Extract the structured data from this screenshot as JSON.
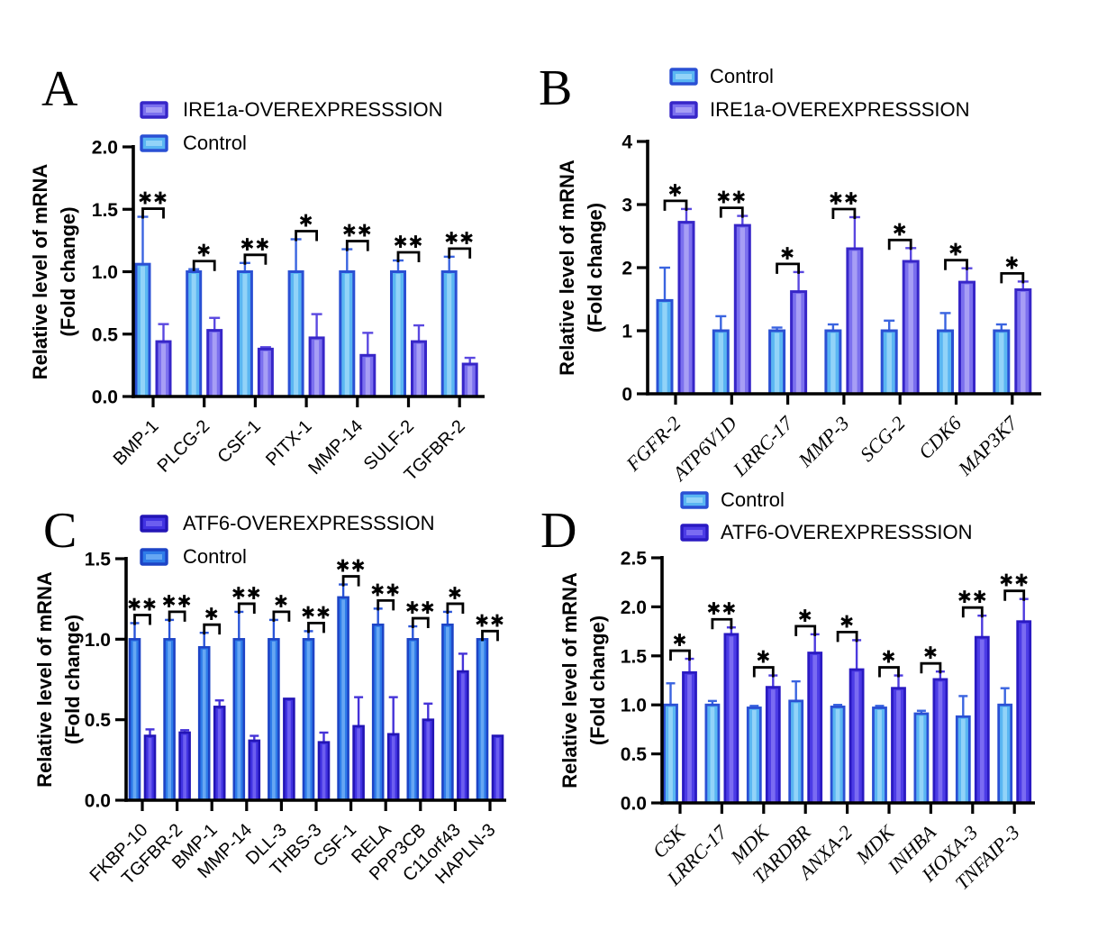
{
  "figure": {
    "background": "#ffffff",
    "axis_color": "#000000",
    "significance_marker_color": "#000000"
  },
  "chart_data": [
    {
      "panel": "A",
      "type": "bar",
      "title": "",
      "xlabel": "",
      "ylabel_lines": [
        "Relative level of  mRNA",
        "(Fold change)"
      ],
      "ylim": [
        0,
        2.0
      ],
      "grid": false,
      "legend_position": "top-left",
      "yticks": [
        {
          "v": 0.0,
          "label": "0.0"
        },
        {
          "v": 0.5,
          "label": "0.5"
        },
        {
          "v": 1.0,
          "label": "1.0"
        },
        {
          "v": 1.5,
          "label": "1.5"
        },
        {
          "v": 2.0,
          "label": "2.0"
        }
      ],
      "categories": [
        "BMP-1",
        "PLCG-2",
        "CSF-1",
        "PITX-1",
        "MMP-14",
        "SULF-2",
        "TGFBR-2"
      ],
      "category_label_style": "sans",
      "legend": [
        {
          "series": "overexpression",
          "label": "IRE1a-OVEREXPRESSSION"
        },
        {
          "series": "control",
          "label": "Control"
        }
      ],
      "series": {
        "control": {
          "name": "Control",
          "values": [
            1.06,
            1.0,
            1.0,
            1.0,
            1.0,
            1.0,
            1.0
          ],
          "errors": [
            0.38,
            0.02,
            0.07,
            0.26,
            0.18,
            0.09,
            0.12
          ],
          "colors": {
            "fill": "#5ab6f2",
            "highlight": "#92d3f8",
            "edge": "#2a50d4",
            "error": "#3a64e0"
          }
        },
        "overexpression": {
          "name": "IRE1a-OVEREXPRESSSION",
          "values": [
            0.44,
            0.53,
            0.38,
            0.47,
            0.33,
            0.44,
            0.26
          ],
          "errors": [
            0.14,
            0.1,
            0.015,
            0.19,
            0.18,
            0.13,
            0.05
          ],
          "colors": {
            "fill": "#7b70ee",
            "highlight": "#a79ef5",
            "edge": "#3726c8",
            "error": "#5a48e0"
          }
        }
      },
      "significance": [
        "**",
        "*",
        "**",
        "*",
        "**",
        "**",
        "**"
      ]
    },
    {
      "panel": "B",
      "type": "bar",
      "title": "",
      "xlabel": "",
      "ylabel_lines": [
        "Relative level of  mRNA",
        "(Fold change)"
      ],
      "ylim": [
        0,
        4
      ],
      "grid": false,
      "legend_position": "top-left",
      "yticks": [
        {
          "v": 0,
          "label": "0"
        },
        {
          "v": 1,
          "label": "1"
        },
        {
          "v": 2,
          "label": "2"
        },
        {
          "v": 3,
          "label": "3"
        },
        {
          "v": 4,
          "label": "4"
        }
      ],
      "categories": [
        "FGFR-2",
        "ATP6V1D",
        "LRRC-17",
        "MMP-3",
        "SCG-2",
        "CDK6",
        "MAP3K7"
      ],
      "category_label_style": "serif-italic",
      "legend": [
        {
          "series": "control",
          "label": "Control"
        },
        {
          "series": "overexpression",
          "label": "IRE1a-OVEREXPRESSSION"
        }
      ],
      "series": {
        "control": {
          "name": "Control",
          "values": [
            1.48,
            1.0,
            1.0,
            1.0,
            1.0,
            1.0,
            1.0
          ],
          "errors": [
            0.52,
            0.23,
            0.05,
            0.1,
            0.16,
            0.28,
            0.1
          ],
          "colors": {
            "fill": "#5ab6f2",
            "highlight": "#92d3f8",
            "edge": "#2a50d4",
            "error": "#3a64e0"
          }
        },
        "overexpression": {
          "name": "IRE1a-OVEREXPRESSSION",
          "values": [
            2.72,
            2.67,
            1.62,
            2.3,
            2.1,
            1.77,
            1.65
          ],
          "errors": [
            0.21,
            0.15,
            0.31,
            0.5,
            0.21,
            0.22,
            0.13
          ],
          "colors": {
            "fill": "#7b70ee",
            "highlight": "#a79ef5",
            "edge": "#3726c8",
            "error": "#5a48e0"
          }
        }
      },
      "significance": [
        "*",
        "**",
        "*",
        "**",
        "*",
        "*",
        "*"
      ]
    },
    {
      "panel": "C",
      "type": "bar",
      "title": "",
      "xlabel": "",
      "ylabel_lines": [
        "Relative level of  mRNA",
        "(Fold change)"
      ],
      "ylim": [
        0,
        1.5
      ],
      "grid": false,
      "legend_position": "top-left",
      "yticks": [
        {
          "v": 0.0,
          "label": "0.0"
        },
        {
          "v": 0.5,
          "label": "0.5"
        },
        {
          "v": 1.0,
          "label": "1.0"
        },
        {
          "v": 1.5,
          "label": "1.5"
        }
      ],
      "categories": [
        "FKBP-10",
        "TGFBR-2",
        "BMP-1",
        "MMP-14",
        "DLL-3",
        "THBS-3",
        "CSF-1",
        "RELA",
        "PPP3CB",
        "C11orf43",
        "HAPLN-3"
      ],
      "category_label_style": "sans",
      "legend": [
        {
          "series": "overexpression",
          "label": "ATF6-OVEREXPRESSSION"
        },
        {
          "series": "control",
          "label": "Control"
        }
      ],
      "series": {
        "control": {
          "name": "Control",
          "values": [
            1.0,
            1.0,
            0.95,
            1.0,
            1.0,
            1.0,
            1.26,
            1.09,
            1.0,
            1.09,
            1.0
          ],
          "errors": [
            0.1,
            0.12,
            0.09,
            0.17,
            0.12,
            0.05,
            0.08,
            0.1,
            0.08,
            0.08,
            0
          ],
          "colors": {
            "fill": "#2f7ce9",
            "highlight": "#66a7f3",
            "edge": "#1d44c6",
            "error": "#2a55d8"
          }
        },
        "overexpression": {
          "name": "ATF6-OVEREXPRESSSION",
          "values": [
            0.4,
            0.42,
            0.58,
            0.37,
            0.63,
            0.36,
            0.46,
            0.41,
            0.5,
            0.8,
            0.4
          ],
          "errors": [
            0.04,
            0.015,
            0.04,
            0.03,
            0,
            0.06,
            0.18,
            0.23,
            0.1,
            0.11,
            0
          ],
          "colors": {
            "fill": "#4133e2",
            "highlight": "#6c5ef0",
            "edge": "#2315b6",
            "error": "#4533d8"
          }
        }
      },
      "significance": [
        "**",
        "**",
        "*",
        "**",
        "*",
        "**",
        "**",
        "**",
        "**",
        "*",
        "**"
      ]
    },
    {
      "panel": "D",
      "type": "bar",
      "title": "",
      "xlabel": "",
      "ylabel_lines": [
        "Relative level of  mRNA",
        "(Fold change)"
      ],
      "ylim": [
        0,
        2.5
      ],
      "grid": false,
      "legend_position": "top-left",
      "yticks": [
        {
          "v": 0.0,
          "label": "0.0"
        },
        {
          "v": 0.5,
          "label": "0.5"
        },
        {
          "v": 1.0,
          "label": "1.0"
        },
        {
          "v": 1.5,
          "label": "1.5"
        },
        {
          "v": 2.0,
          "label": "2.0"
        },
        {
          "v": 2.5,
          "label": "2.5"
        }
      ],
      "categories": [
        "CSK",
        "LRRC-17",
        "MDK",
        "TARDBR",
        "ANXA-2",
        "MDK",
        "INHBA",
        "HOXA-3",
        "TNFAIP-3"
      ],
      "category_label_style": "serif-italic",
      "legend": [
        {
          "series": "control",
          "label": "Control"
        },
        {
          "series": "overexpression",
          "label": "ATF6-OVEREXPRESSSION"
        }
      ],
      "series": {
        "control": {
          "name": "Control",
          "values": [
            1.0,
            1.0,
            0.97,
            1.04,
            0.98,
            0.97,
            0.91,
            0.88,
            1.0
          ],
          "errors": [
            0.22,
            0.04,
            0.02,
            0.2,
            0.02,
            0.02,
            0.03,
            0.21,
            0.17
          ],
          "colors": {
            "fill": "#5ab6f2",
            "highlight": "#92d3f8",
            "edge": "#2a50d4",
            "error": "#3a64e0"
          }
        },
        "overexpression": {
          "name": "ATF6-OVEREXPRESSSION",
          "values": [
            1.33,
            1.72,
            1.18,
            1.53,
            1.36,
            1.17,
            1.26,
            1.69,
            1.85
          ],
          "errors": [
            0.14,
            0.07,
            0.12,
            0.19,
            0.3,
            0.13,
            0.08,
            0.22,
            0.23
          ],
          "colors": {
            "fill": "#4c3ce6",
            "highlight": "#7a6bf2",
            "edge": "#2a1ac2",
            "error": "#4c3ade"
          }
        }
      },
      "significance": [
        "*",
        "**",
        "*",
        "*",
        "*",
        "*",
        "*",
        "**",
        "**"
      ]
    }
  ]
}
